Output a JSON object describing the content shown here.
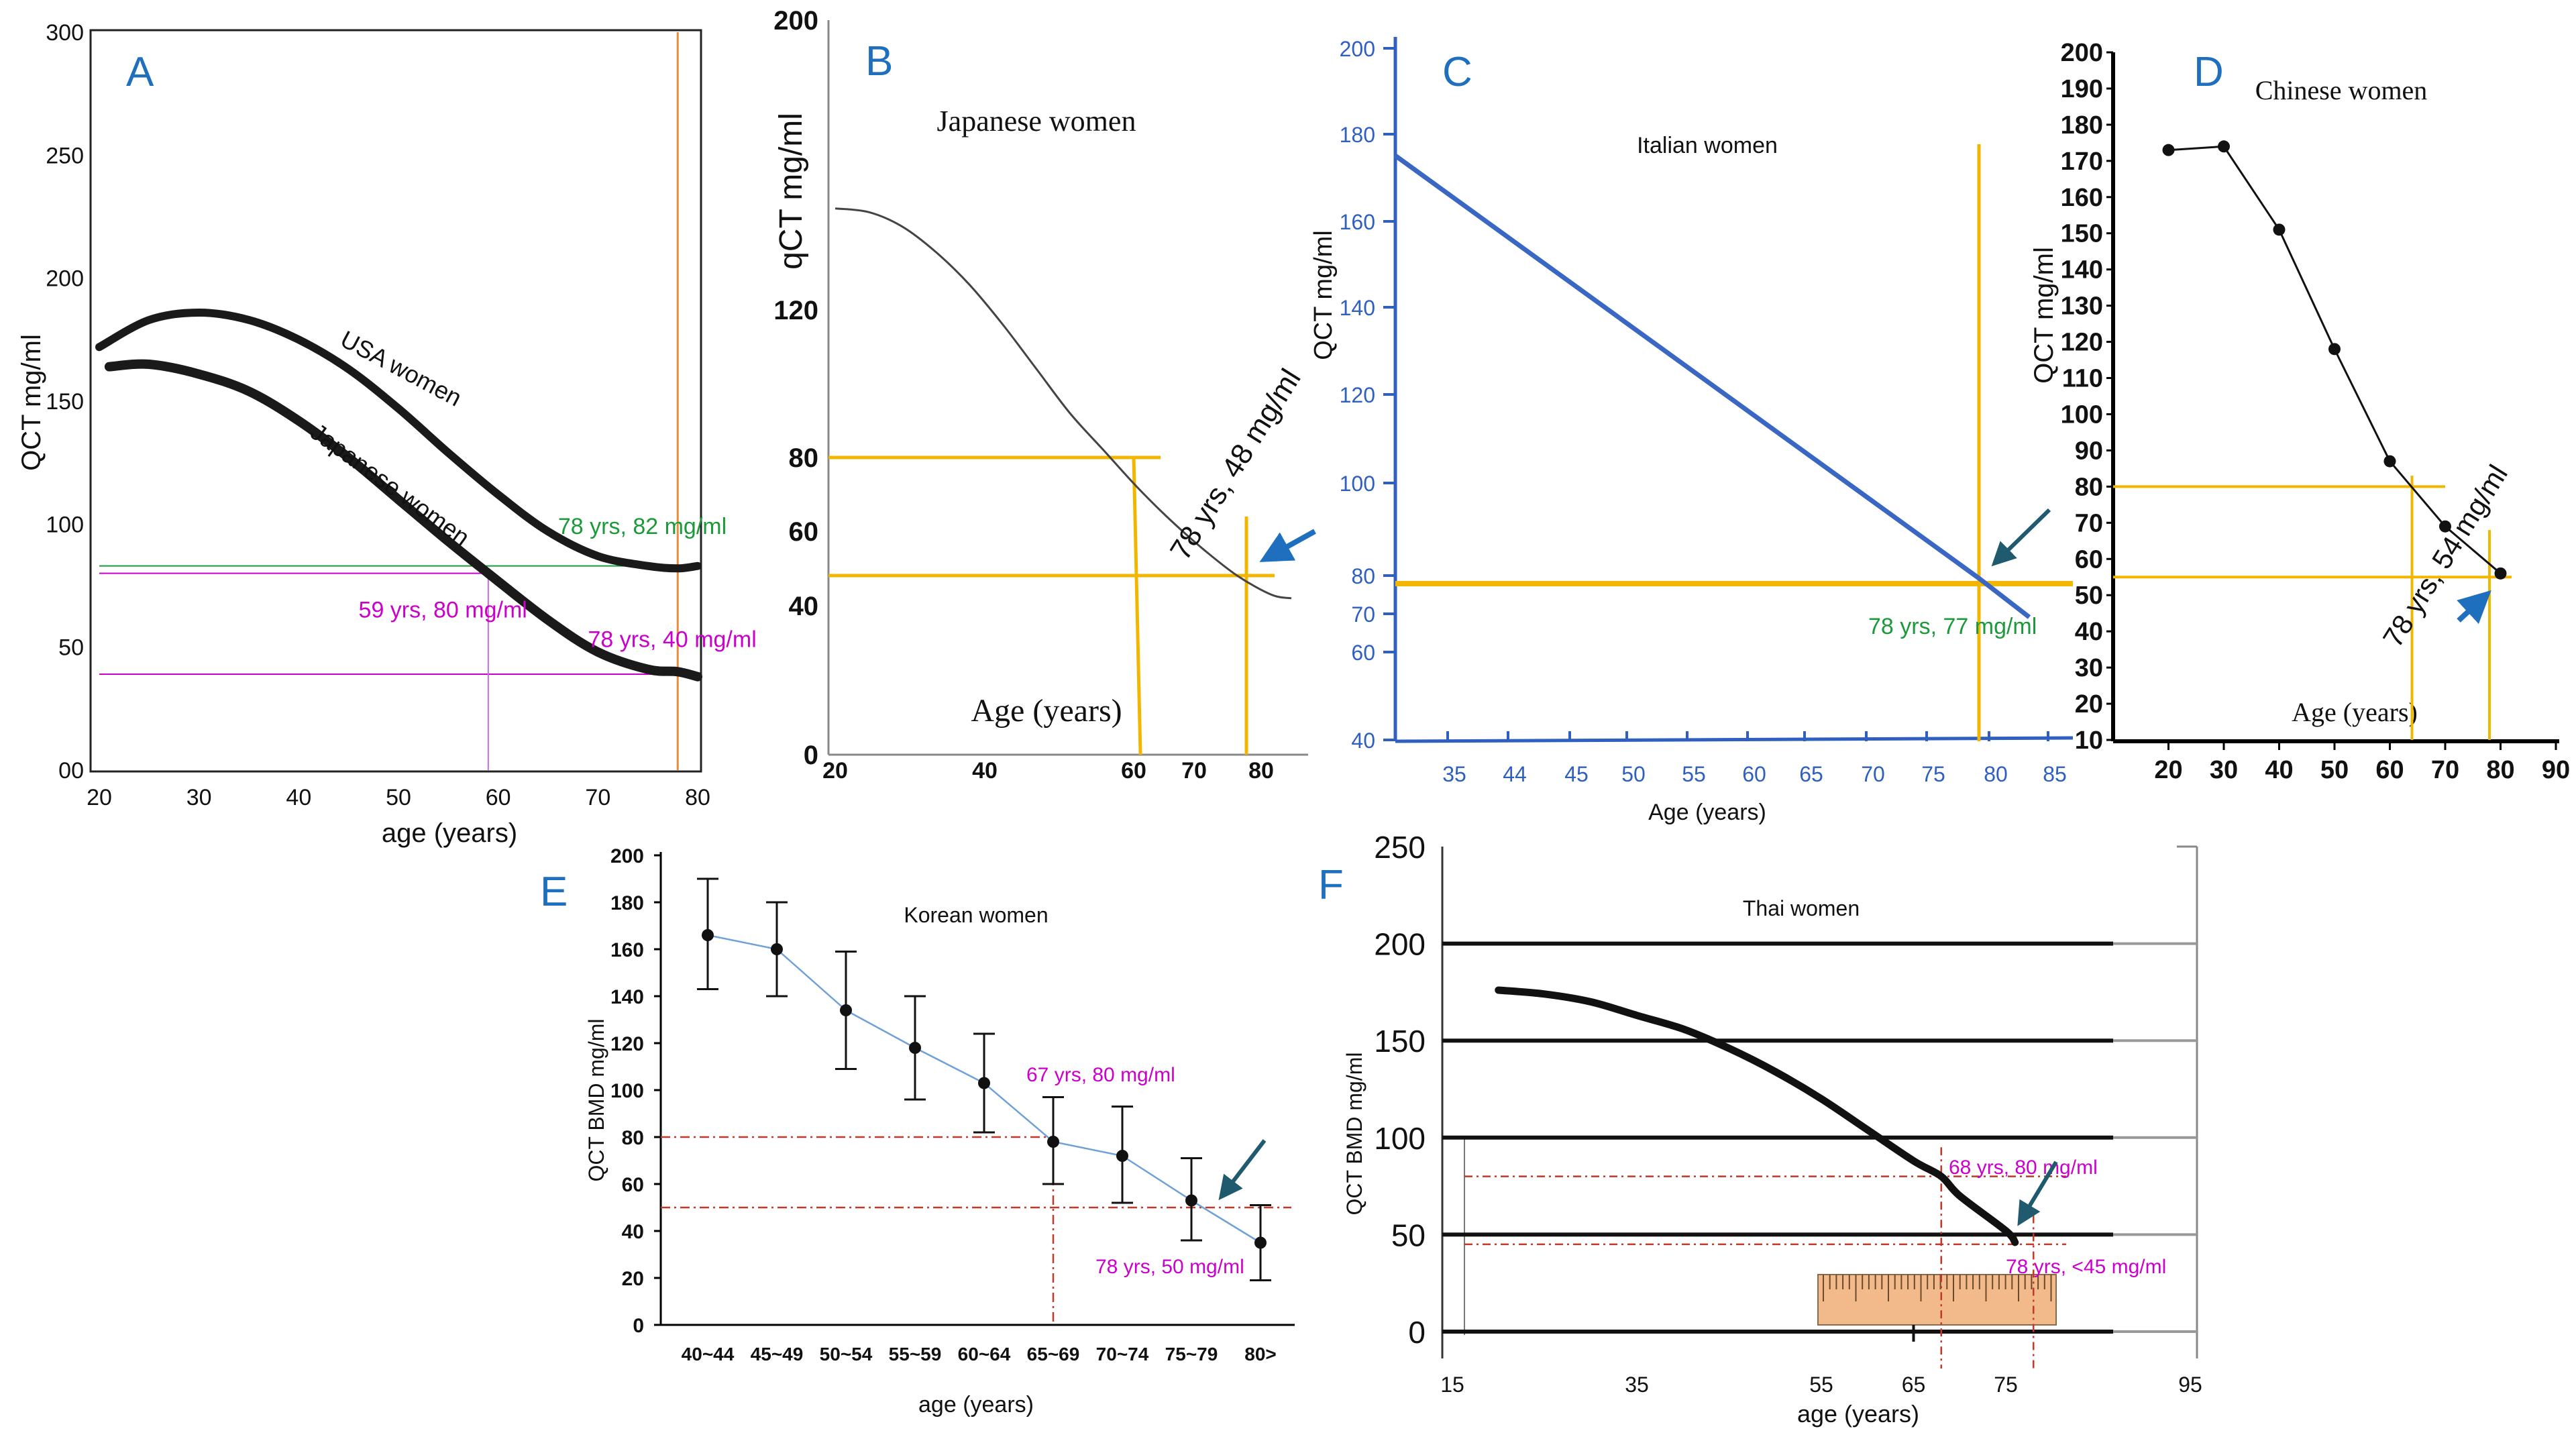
{
  "figure": {
    "colors": {
      "orange_line": "#f2b600",
      "blue_arrow": "#1f6fbf",
      "green_text": "#1c9a3a",
      "magenta_text": "#cc00cc",
      "red_dash": "#c0392b",
      "dark": "#111111",
      "ruler": "#f2b98a"
    }
  },
  "chart_data": [
    {
      "panel": "A",
      "type": "line",
      "title": "",
      "xlabel": "age (years)",
      "ylabel": "QCT mg/ml",
      "xlim": [
        20,
        80
      ],
      "ylim": [
        0,
        300
      ],
      "x_ticks": [
        "20",
        "30",
        "40",
        "50",
        "60",
        "70",
        "80"
      ],
      "y_ticks": [
        "00",
        "50",
        "100",
        "150",
        "200",
        "250",
        "300"
      ],
      "series": [
        {
          "name": "USA women",
          "x": [
            20,
            25,
            30,
            35,
            40,
            45,
            50,
            55,
            60,
            65,
            70,
            75,
            78,
            80
          ],
          "y": [
            172,
            183,
            186,
            183,
            175,
            163,
            147,
            129,
            112,
            97,
            87,
            83,
            82,
            83
          ]
        },
        {
          "name": "Japanese women",
          "x": [
            21,
            25,
            30,
            35,
            40,
            45,
            50,
            55,
            59,
            65,
            70,
            75,
            78,
            80
          ],
          "y": [
            164,
            165,
            161,
            154,
            142,
            127,
            110,
            93,
            80,
            61,
            48,
            41,
            40,
            38
          ]
        }
      ],
      "annotations": [
        "78 yrs, 82 mg/ml",
        "59 yrs, 80 mg/ml",
        "78 yrs, 40 mg/ml"
      ]
    },
    {
      "panel": "B",
      "type": "line",
      "title": "Japanese women",
      "xlabel": "Age (years)",
      "ylabel": "qCT mg/ml",
      "xlim": [
        20,
        90
      ],
      "x_ticks": [
        "20",
        "40",
        "60",
        "70",
        "80"
      ],
      "y_ticks": [
        "0",
        "40",
        "60",
        "80",
        "120",
        "200"
      ],
      "series": [
        {
          "name": "Japanese women",
          "x": [
            20,
            25,
            30,
            35,
            40,
            45,
            50,
            55,
            60,
            65,
            70,
            75,
            80,
            85,
            88
          ],
          "y": [
            148,
            147,
            143,
            136,
            127,
            116,
            104,
            92,
            82,
            72,
            63,
            55,
            48,
            43,
            42
          ]
        }
      ],
      "annotations": [
        "78 yrs, 48 mg/ml"
      ]
    },
    {
      "panel": "C",
      "type": "line",
      "title": "Italian women",
      "xlabel": "Age (years)",
      "ylabel": "QCT mg/ml",
      "x_ticks": [
        "35",
        "44",
        "45",
        "50",
        "55",
        "60",
        "65",
        "70",
        "75",
        "80",
        "85"
      ],
      "y_ticks": [
        "40",
        "60",
        "70",
        "80",
        "100",
        "120",
        "140",
        "160",
        "180",
        "200"
      ],
      "series": [
        {
          "name": "Italian women",
          "x": [
            30,
            78,
            82
          ],
          "y": [
            175,
            77,
            68
          ]
        }
      ],
      "annotations": [
        "78 yrs, 77 mg/ml"
      ]
    },
    {
      "panel": "D",
      "type": "line",
      "title": "Chinese women",
      "xlabel": "Age (years)",
      "ylabel": "QCT mg/ml",
      "xlim": [
        10,
        90
      ],
      "ylim": [
        10,
        200
      ],
      "x_ticks": [
        "20",
        "30",
        "40",
        "50",
        "60",
        "70",
        "80",
        "90"
      ],
      "y_ticks": [
        "10",
        "20",
        "30",
        "40",
        "50",
        "60",
        "70",
        "80",
        "90",
        "100",
        "110",
        "120",
        "130",
        "140",
        "150",
        "160",
        "170",
        "180",
        "190",
        "200"
      ],
      "series": [
        {
          "name": "Chinese women",
          "x": [
            20,
            30,
            40,
            50,
            60,
            70,
            80
          ],
          "y": [
            173,
            174,
            151,
            118,
            87,
            69,
            56
          ]
        }
      ],
      "annotations": [
        "78 yrs, 54 mg/ml"
      ]
    },
    {
      "panel": "E",
      "type": "line",
      "title": "Korean women",
      "xlabel": "age (years)",
      "ylabel": "QCT BMD mg/ml",
      "ylim": [
        0,
        200
      ],
      "categories": [
        "40~44",
        "45~49",
        "50~54",
        "55~59",
        "60~64",
        "65~69",
        "70~74",
        "75~79",
        "80>"
      ],
      "y_ticks": [
        "0",
        "20",
        "40",
        "60",
        "80",
        "100",
        "120",
        "140",
        "160",
        "180",
        "200"
      ],
      "series": [
        {
          "name": "Korean women",
          "values": [
            166,
            160,
            134,
            118,
            103,
            78,
            72,
            53,
            35
          ],
          "error_low": [
            143,
            140,
            109,
            96,
            82,
            60,
            52,
            36,
            19
          ],
          "error_high": [
            190,
            180,
            159,
            140,
            124,
            97,
            93,
            71,
            51
          ]
        }
      ],
      "annotations": [
        "67 yrs, 80 mg/ml",
        "78 yrs, 50 mg/ml"
      ]
    },
    {
      "panel": "F",
      "type": "line",
      "title": "Thai women",
      "xlabel": "age (years)",
      "ylabel": "QCT BMD mg/ml",
      "xlim": [
        15,
        95
      ],
      "ylim": [
        0,
        250
      ],
      "x_ticks": [
        "15",
        "35",
        "55",
        "65",
        "75",
        "95"
      ],
      "y_ticks": [
        "0",
        "50",
        "100",
        "150",
        "200",
        "250"
      ],
      "series": [
        {
          "name": "Thai women",
          "x": [
            20,
            25,
            30,
            35,
            40,
            45,
            50,
            55,
            60,
            65,
            68,
            70,
            75,
            76
          ],
          "y": [
            176,
            174,
            170,
            163,
            156,
            146,
            134,
            120,
            104,
            88,
            80,
            70,
            52,
            46
          ]
        }
      ],
      "annotations": [
        "68 yrs, 80 mg/ml",
        "78 yrs, <45 mg/ml"
      ]
    }
  ]
}
